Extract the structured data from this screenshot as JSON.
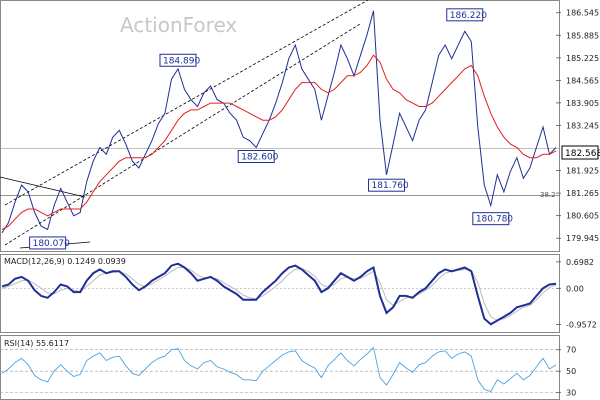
{
  "watermark": "ActionForex",
  "chart_data": [
    {
      "type": "line",
      "panel": "price",
      "ylim": [
        179.6,
        186.8
      ],
      "yticks": [
        186.545,
        185.885,
        185.225,
        184.565,
        183.905,
        183.245,
        181.925,
        181.265,
        180.605,
        179.945
      ],
      "last_price": "182.568",
      "fib_label": "38.2",
      "fib_level": 181.2,
      "reference_level": 182.568,
      "colors": {
        "price": "#1f2f96",
        "moving_average": "#e02020",
        "trendline": "#000000"
      },
      "series": [
        {
          "values": [
            180.1,
            180.4,
            181.0,
            181.5,
            181.3,
            180.7,
            180.3,
            180.2,
            180.9,
            181.4,
            181.0,
            180.6,
            180.7,
            181.6,
            182.2,
            182.6,
            182.4,
            182.9,
            183.1,
            182.7,
            182.2,
            182.0,
            182.4,
            182.8,
            183.3,
            183.6,
            184.6,
            184.9,
            184.3,
            184.0,
            183.8,
            184.2,
            184.4,
            184.0,
            183.9,
            183.6,
            183.4,
            182.9,
            182.8,
            182.6,
            183.0,
            183.4,
            183.9,
            184.5,
            185.2,
            185.6,
            184.9,
            184.6,
            184.3,
            183.4,
            184.1,
            184.8,
            185.6,
            185.2,
            184.7,
            185.3,
            185.9,
            186.6,
            183.4,
            181.8,
            182.7,
            183.6,
            183.2,
            182.8,
            183.4,
            183.7,
            184.5,
            185.3,
            185.6,
            185.2,
            185.6,
            186.0,
            185.7,
            183.2,
            181.5,
            180.9,
            181.8,
            181.3,
            181.9,
            182.3,
            181.7,
            182.0,
            182.6,
            183.2,
            182.4,
            182.6
          ]
        },
        {
          "values": [
            180.2,
            180.3,
            180.5,
            180.7,
            180.8,
            180.8,
            180.7,
            180.6,
            180.7,
            180.8,
            180.8,
            180.8,
            180.8,
            181.0,
            181.3,
            181.6,
            181.8,
            182.0,
            182.2,
            182.3,
            182.3,
            182.3,
            182.3,
            182.4,
            182.6,
            182.8,
            183.1,
            183.4,
            183.6,
            183.7,
            183.7,
            183.8,
            183.9,
            183.9,
            183.9,
            183.9,
            183.8,
            183.7,
            183.6,
            183.5,
            183.4,
            183.4,
            183.5,
            183.7,
            184.0,
            184.3,
            184.5,
            184.5,
            184.5,
            184.3,
            184.2,
            184.3,
            184.5,
            184.7,
            184.7,
            184.8,
            185.0,
            185.3,
            185.1,
            184.6,
            184.3,
            184.2,
            184.0,
            183.9,
            183.8,
            183.8,
            183.9,
            184.1,
            184.3,
            184.5,
            184.7,
            184.9,
            185.0,
            184.7,
            184.1,
            183.6,
            183.2,
            182.9,
            182.7,
            182.6,
            182.4,
            182.3,
            182.3,
            182.4,
            182.4,
            182.5
          ]
        }
      ],
      "annotations": [
        {
          "label": "184.890",
          "index": 27,
          "value": 184.89,
          "side": "above"
        },
        {
          "label": "182.600",
          "index": 39,
          "value": 182.6,
          "side": "below"
        },
        {
          "label": "181.760",
          "index": 59,
          "value": 181.76,
          "side": "below"
        },
        {
          "label": "186.220",
          "index": 71,
          "value": 186.22,
          "side": "above"
        },
        {
          "label": "180.780",
          "index": 75,
          "value": 180.78,
          "side": "below"
        },
        {
          "label": "180.070",
          "index": 7,
          "value": 180.07,
          "side": "below"
        }
      ]
    },
    {
      "type": "line",
      "panel": "macd",
      "indicator_label": "MACD(12,26,9) 0.1249 0.0939",
      "ylim": [
        -1.1,
        0.8
      ],
      "yticks": [
        0.6982,
        0.0,
        -0.9572
      ],
      "colors": {
        "macd": "#1f2f96",
        "signal": "#bbbbbb"
      },
      "series": [
        {
          "values": [
            0.05,
            0.1,
            0.25,
            0.3,
            0.2,
            -0.05,
            -0.2,
            -0.25,
            -0.1,
            0.1,
            0.05,
            -0.1,
            -0.1,
            0.2,
            0.4,
            0.5,
            0.4,
            0.45,
            0.45,
            0.3,
            0.1,
            -0.05,
            0.05,
            0.2,
            0.3,
            0.4,
            0.6,
            0.65,
            0.55,
            0.4,
            0.2,
            0.25,
            0.3,
            0.2,
            0.05,
            -0.05,
            -0.15,
            -0.3,
            -0.3,
            -0.3,
            -0.1,
            0.05,
            0.2,
            0.4,
            0.55,
            0.6,
            0.5,
            0.35,
            0.2,
            -0.1,
            0.0,
            0.2,
            0.4,
            0.3,
            0.2,
            0.3,
            0.45,
            0.55,
            -0.2,
            -0.65,
            -0.5,
            -0.2,
            -0.2,
            -0.25,
            -0.1,
            0.0,
            0.2,
            0.4,
            0.5,
            0.45,
            0.5,
            0.55,
            0.45,
            -0.2,
            -0.8,
            -0.95,
            -0.85,
            -0.75,
            -0.65,
            -0.5,
            -0.45,
            -0.4,
            -0.2,
            0.0,
            0.1,
            0.12
          ]
        },
        {
          "values": [
            0.0,
            0.05,
            0.12,
            0.2,
            0.22,
            0.12,
            0.0,
            -0.12,
            -0.15,
            -0.05,
            0.0,
            -0.05,
            -0.08,
            0.05,
            0.2,
            0.35,
            0.4,
            0.42,
            0.44,
            0.38,
            0.25,
            0.1,
            0.05,
            0.12,
            0.22,
            0.32,
            0.45,
            0.55,
            0.55,
            0.48,
            0.35,
            0.28,
            0.28,
            0.25,
            0.15,
            0.05,
            -0.05,
            -0.18,
            -0.25,
            -0.28,
            -0.2,
            -0.08,
            0.05,
            0.2,
            0.38,
            0.5,
            0.52,
            0.45,
            0.32,
            0.1,
            0.03,
            0.1,
            0.25,
            0.3,
            0.25,
            0.27,
            0.35,
            0.45,
            0.15,
            -0.3,
            -0.45,
            -0.35,
            -0.25,
            -0.22,
            -0.15,
            -0.05,
            0.08,
            0.25,
            0.4,
            0.45,
            0.47,
            0.5,
            0.48,
            0.15,
            -0.4,
            -0.75,
            -0.85,
            -0.8,
            -0.72,
            -0.6,
            -0.5,
            -0.45,
            -0.3,
            -0.12,
            0.02,
            0.09
          ]
        }
      ]
    },
    {
      "type": "line",
      "panel": "rsi",
      "indicator_label": "RSI(14) 55.6117",
      "ylim": [
        25,
        80
      ],
      "yticks": [
        70,
        50,
        30
      ],
      "colors": {
        "rsi": "#4aa3e0",
        "levels": "#999999"
      },
      "series": [
        {
          "values": [
            48,
            52,
            58,
            62,
            56,
            46,
            42,
            40,
            50,
            56,
            50,
            45,
            47,
            60,
            64,
            67,
            60,
            63,
            64,
            55,
            48,
            46,
            52,
            58,
            62,
            64,
            70,
            71,
            60,
            55,
            52,
            58,
            60,
            54,
            52,
            49,
            47,
            42,
            42,
            41,
            50,
            55,
            60,
            65,
            68,
            69,
            60,
            56,
            53,
            44,
            55,
            61,
            67,
            60,
            55,
            61,
            66,
            72,
            44,
            37,
            47,
            58,
            53,
            49,
            56,
            58,
            64,
            68,
            69,
            62,
            66,
            68,
            64,
            42,
            33,
            31,
            42,
            38,
            43,
            48,
            42,
            46,
            54,
            62,
            52,
            56
          ]
        }
      ]
    }
  ]
}
